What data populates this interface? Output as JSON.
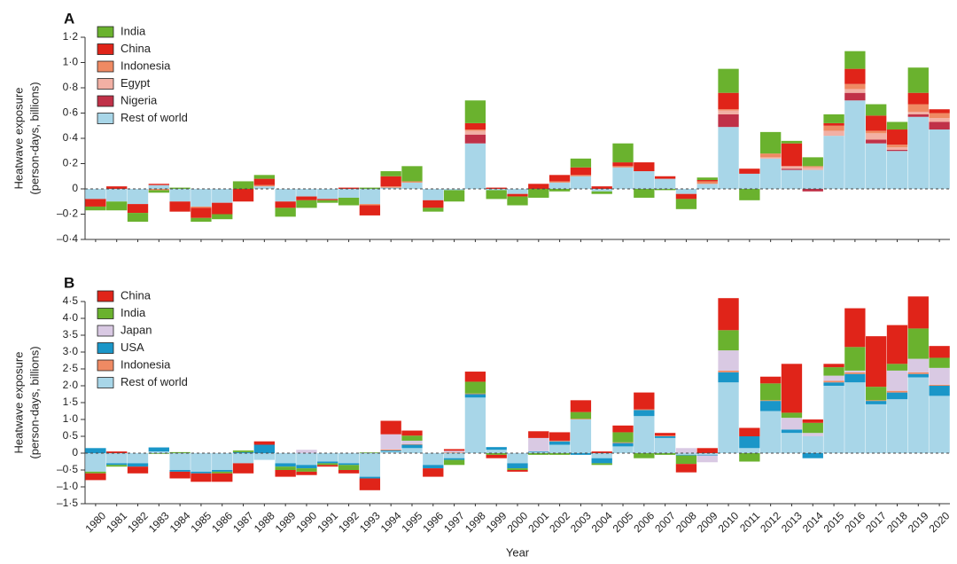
{
  "figure": {
    "xlabel": "Year",
    "years": [
      "1980",
      "1981",
      "1982",
      "1983",
      "1984",
      "1985",
      "1986",
      "1987",
      "1988",
      "1989",
      "1990",
      "1991",
      "1992",
      "1993",
      "1994",
      "1995",
      "1996",
      "1997",
      "1998",
      "1999",
      "2000",
      "2001",
      "2002",
      "2003",
      "2004",
      "2005",
      "2006",
      "2007",
      "2008",
      "2009",
      "2010",
      "2011",
      "2012",
      "2013",
      "2014",
      "2015",
      "2016",
      "2017",
      "2018",
      "2019",
      "2020"
    ]
  },
  "colors": {
    "India": "#6ab22e",
    "China": "#e02419",
    "Indonesia": "#ef8a63",
    "Egypt": "#f2b0a4",
    "Nigeria": "#c03148",
    "Japan": "#d9c9e3",
    "USA": "#1a96c8",
    "Rest of world": "#a8d6e8"
  },
  "chart_data": [
    {
      "type": "bar",
      "stacked": true,
      "panel": "A",
      "title": "",
      "xlabel": "Year",
      "ylabel_line1": "Heatwave exposure",
      "ylabel_line2": "(person-days, billions)",
      "ylim": [
        -0.4,
        1.2
      ],
      "yticks": [
        1.2,
        1.0,
        0.8,
        0.6,
        0.4,
        0.2,
        0,
        -0.2,
        -0.4
      ],
      "ytick_labels": [
        "1·2",
        "1·0",
        "0·8",
        "0·6",
        "0·4",
        "0·2",
        "0",
        "–0·2",
        "–0·4"
      ],
      "legend_position": "top-left",
      "categories": [
        "1980",
        "1981",
        "1982",
        "1983",
        "1984",
        "1985",
        "1986",
        "1987",
        "1988",
        "1989",
        "1990",
        "1991",
        "1992",
        "1993",
        "1994",
        "1995",
        "1996",
        "1997",
        "1998",
        "1999",
        "2000",
        "2001",
        "2002",
        "2003",
        "2004",
        "2005",
        "2006",
        "2007",
        "2008",
        "2009",
        "2010",
        "2011",
        "2012",
        "2013",
        "2014",
        "2015",
        "2016",
        "2017",
        "2018",
        "2019",
        "2020"
      ],
      "series": [
        {
          "name": "Rest of world",
          "values": [
            -0.08,
            -0.1,
            -0.12,
            0.03,
            -0.1,
            -0.14,
            -0.11,
            0,
            0.02,
            -0.1,
            -0.06,
            -0.08,
            -0.07,
            -0.12,
            0.01,
            0.05,
            -0.09,
            -0.01,
            0.36,
            -0.01,
            -0.04,
            0,
            0.05,
            0.1,
            -0.02,
            0.17,
            0.14,
            0.08,
            -0.04,
            0.04,
            0.49,
            0.12,
            0.24,
            0.15,
            0.15,
            0.42,
            0.7,
            0.36,
            0.3,
            0.57,
            0.47
          ]
        },
        {
          "name": "Nigeria",
          "values": [
            0,
            0,
            0,
            0,
            0,
            0,
            0,
            0,
            0,
            0,
            0,
            0,
            0,
            0,
            0,
            0,
            0,
            0,
            0.07,
            0,
            0,
            0,
            0,
            0,
            0,
            0,
            0,
            0,
            0,
            0,
            0.1,
            0,
            0,
            0.01,
            -0.02,
            0,
            0.06,
            0.03,
            0.01,
            0.02,
            0.06
          ]
        },
        {
          "name": "Egypt",
          "values": [
            0,
            0,
            0,
            0,
            0,
            0,
            0,
            0,
            0,
            0,
            0,
            0,
            0,
            0,
            0,
            0,
            0,
            0,
            0.03,
            0,
            0,
            0,
            0,
            0,
            0,
            0,
            0,
            0,
            0,
            0,
            0.03,
            0,
            0.01,
            0.02,
            0.02,
            0.04,
            0.03,
            0.05,
            0.02,
            0.02,
            0.03
          ]
        },
        {
          "name": "Indonesia",
          "values": [
            0,
            0,
            0,
            -0.01,
            0,
            -0.01,
            0,
            0,
            0.01,
            0,
            0,
            0,
            0,
            -0.01,
            0.01,
            0.01,
            0,
            0,
            0.01,
            0,
            0,
            0,
            0.01,
            0.01,
            0,
            0.01,
            0,
            0,
            0,
            0.02,
            0.01,
            0,
            0.03,
            0,
            0.01,
            0.04,
            0.04,
            0.02,
            0.02,
            0.06,
            0.04
          ]
        },
        {
          "name": "China",
          "values": [
            -0.06,
            0.02,
            -0.07,
            0.01,
            -0.08,
            -0.08,
            -0.09,
            -0.1,
            0.05,
            -0.05,
            -0.03,
            -0.01,
            0.01,
            -0.08,
            0.08,
            0,
            -0.06,
            0,
            0.05,
            0.01,
            -0.02,
            0.04,
            0.05,
            0.06,
            0.02,
            0.03,
            0.07,
            0.02,
            -0.04,
            0.01,
            0.13,
            0.04,
            0,
            0.18,
            0,
            0.02,
            0.12,
            0.12,
            0.12,
            0.09,
            0.03
          ]
        },
        {
          "name": "India",
          "values": [
            -0.03,
            -0.07,
            -0.07,
            -0.02,
            0.01,
            -0.03,
            -0.04,
            0.06,
            0.03,
            -0.07,
            -0.06,
            -0.02,
            -0.06,
            0.01,
            0.04,
            0.12,
            -0.03,
            -0.09,
            0.18,
            -0.07,
            -0.07,
            -0.07,
            -0.02,
            0.07,
            -0.02,
            0.15,
            -0.07,
            -0.01,
            -0.08,
            0.02,
            0.19,
            -0.09,
            0.17,
            0.02,
            0.07,
            0.07,
            0.14,
            0.09,
            0.06,
            0.2,
            0
          ]
        }
      ]
    },
    {
      "type": "bar",
      "stacked": true,
      "panel": "B",
      "title": "",
      "xlabel": "Year",
      "ylabel_line1": "Heatwave exposure",
      "ylabel_line2": "(person-days, billions)",
      "ylim": [
        -1.5,
        4.5
      ],
      "yticks": [
        4.5,
        4.0,
        3.5,
        3.0,
        2.5,
        2.0,
        1.5,
        1.0,
        0.5,
        0,
        -0.5,
        -1.0,
        -1.5
      ],
      "ytick_labels": [
        "4·5",
        "4·0",
        "3·5",
        "3·0",
        "2·5",
        "2·0",
        "1·5",
        "1·0",
        "0·5",
        "0",
        "–0·5",
        "–1·0",
        "–1·5"
      ],
      "legend_position": "top-left",
      "categories": [
        "1980",
        "1981",
        "1982",
        "1983",
        "1984",
        "1985",
        "1986",
        "1987",
        "1988",
        "1989",
        "1990",
        "1991",
        "1992",
        "1993",
        "1994",
        "1995",
        "1996",
        "1997",
        "1998",
        "1999",
        "2000",
        "2001",
        "2002",
        "2003",
        "2004",
        "2005",
        "2006",
        "2007",
        "2008",
        "2009",
        "2010",
        "2011",
        "2012",
        "2013",
        "2014",
        "2015",
        "2016",
        "2017",
        "2018",
        "2019",
        "2020"
      ],
      "series": [
        {
          "name": "Rest of world",
          "values": [
            -0.55,
            -0.3,
            -0.3,
            0.05,
            -0.5,
            -0.55,
            -0.5,
            -0.3,
            -0.2,
            -0.3,
            -0.35,
            -0.25,
            -0.3,
            -0.7,
            0.05,
            0.15,
            -0.35,
            -0.15,
            1.65,
            0.1,
            -0.3,
            0.03,
            0.25,
            1.0,
            -0.15,
            0.2,
            1.1,
            0.45,
            -0.05,
            -0.05,
            2.1,
            0.15,
            1.25,
            0.6,
            0.5,
            2.0,
            2.1,
            1.45,
            1.6,
            2.25,
            1.7
          ]
        },
        {
          "name": "USA",
          "values": [
            0.15,
            -0.05,
            -0.1,
            0.12,
            -0.05,
            -0.05,
            -0.05,
            0.03,
            0.25,
            -0.1,
            -0.1,
            -0.05,
            -0.05,
            -0.05,
            0.03,
            0.1,
            -0.1,
            -0.05,
            0.1,
            0.08,
            -0.15,
            0.02,
            0.1,
            -0.05,
            -0.15,
            0.1,
            0.18,
            0.05,
            -0.02,
            -0.02,
            0.3,
            0.35,
            0.3,
            0.1,
            -0.15,
            0.1,
            0.25,
            0.1,
            0.2,
            0.1,
            0.3
          ]
        },
        {
          "name": "Indonesia",
          "values": [
            0,
            0,
            0,
            0,
            0,
            0,
            0,
            0,
            0,
            0,
            0,
            0,
            0,
            0,
            0.03,
            0.02,
            0,
            0.02,
            0.02,
            0,
            0,
            0,
            0.02,
            0.02,
            0,
            0.02,
            0.02,
            0.02,
            0,
            0,
            0.05,
            0,
            0.02,
            0,
            0,
            0.05,
            0.05,
            0.02,
            0.05,
            0.05,
            0.03
          ]
        },
        {
          "name": "Japan",
          "values": [
            0,
            0,
            0,
            0,
            0,
            0,
            0,
            0,
            0,
            0,
            0.1,
            0,
            0,
            0,
            0.45,
            0.1,
            0,
            0.05,
            0,
            0,
            0,
            0.4,
            0,
            0,
            0,
            0,
            0,
            0,
            0.15,
            -0.2,
            0.6,
            0,
            0,
            0.35,
            0.1,
            0.15,
            0.05,
            0,
            0.6,
            0.4,
            0.5
          ]
        },
        {
          "name": "India",
          "values": [
            -0.05,
            -0.05,
            0,
            -0.02,
            0.03,
            0,
            -0.05,
            0.05,
            0,
            -0.1,
            -0.1,
            -0.05,
            -0.15,
            0.02,
            0,
            0.15,
            0,
            -0.15,
            0.35,
            -0.05,
            -0.05,
            -0.05,
            -0.05,
            0.2,
            -0.05,
            0.3,
            -0.15,
            -0.05,
            -0.25,
            0,
            0.6,
            -0.25,
            0.5,
            0.15,
            0.3,
            0.25,
            0.7,
            0.4,
            0.2,
            0.9,
            0.3
          ]
        },
        {
          "name": "China",
          "values": [
            -0.2,
            0.05,
            -0.2,
            0,
            -0.2,
            -0.25,
            -0.25,
            -0.3,
            0.1,
            -0.2,
            -0.1,
            -0.05,
            -0.1,
            -0.35,
            0.4,
            0.15,
            -0.25,
            0.05,
            0.3,
            -0.1,
            -0.05,
            0.2,
            0.25,
            0.35,
            0.05,
            0.2,
            0.5,
            0.08,
            -0.25,
            0.15,
            0.95,
            0.25,
            0.2,
            1.45,
            0.1,
            0.1,
            1.15,
            1.5,
            1.15,
            0.95,
            0.35
          ]
        }
      ]
    }
  ]
}
